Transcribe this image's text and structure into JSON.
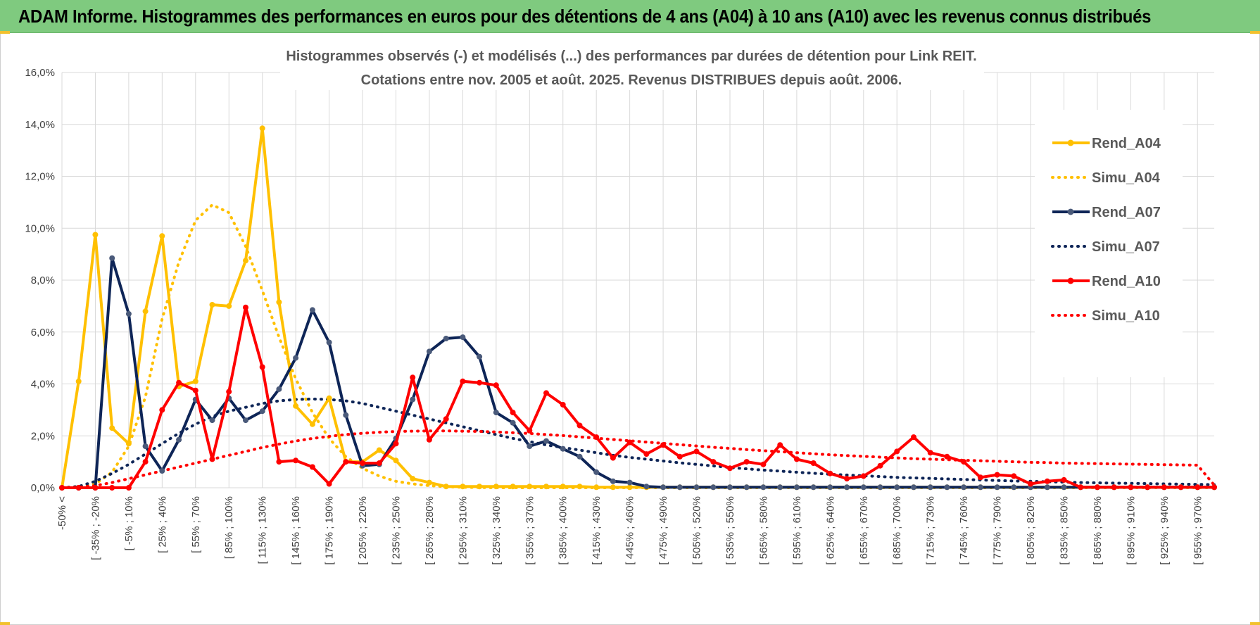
{
  "header": {
    "title": "ADAM Informe. Histogrammes des performances en euros pour des détentions de 4 ans (A04) à 10 ans (A10) avec les revenus connus distribués"
  },
  "colors": {
    "header_band": "#7fca7f",
    "a04": "#ffc000",
    "a07": "#0e2557",
    "a10": "#ff0000",
    "grid": "#d9d9d9"
  },
  "chart_data": {
    "type": "line",
    "title": [
      "Histogrammes observés (-) et modélisés (...) des performances par durées de détention pour Link REIT.",
      "Cotations entre nov. 2005 et août. 2025. Revenus DISTRIBUES depuis août. 2006."
    ],
    "ylim": [
      0,
      16
    ],
    "yticks": [
      "0,0%",
      "2,0%",
      "4,0%",
      "6,0%",
      "8,0%",
      "10,0%",
      "12,0%",
      "14,0%",
      "16,0%"
    ],
    "grid": true,
    "legend_position": "top-right",
    "x_labels": [
      "-50% <",
      "[ -35% ; -20%",
      "[ -5% ; 10%",
      "[ 25% ; 40%",
      "[ 55% ; 70%",
      "[ 85% ; 100%",
      "[ 115% ; 130%",
      "[ 145% ; 160%",
      "[ 175% ; 190%",
      "[ 205% ; 220%",
      "[ 235% ; 250%",
      "[ 265% ; 280%",
      "[ 295% ; 310%",
      "[ 325% ; 340%",
      "[ 355% ; 370%",
      "[ 385% ; 400%",
      "[ 415% ; 430%",
      "[ 445% ; 460%",
      "[ 475% ; 490%",
      "[ 505% ; 520%",
      "[ 535% ; 550%",
      "[ 565% ; 580%",
      "[ 595% ; 610%",
      "[ 625% ; 640%",
      "[ 655% ; 670%",
      "[ 685% ; 700%",
      "[ 715% ; 730%",
      "[ 745% ; 760%",
      "[ 775% ; 790%",
      "[ 805% ; 820%",
      "[ 835% ; 850%",
      "[ 865% ; 880%",
      "[ 895% ; 910%",
      "[ 925% ; 940%",
      "[ 955% ; 970%"
    ],
    "series": [
      {
        "name": "Rend_A04",
        "style": "solid",
        "color": "#ffc000",
        "markers": true,
        "values": [
          0,
          4.1,
          9.75,
          2.3,
          1.7,
          6.8,
          9.7,
          3.9,
          4.1,
          7.05,
          7.0,
          8.75,
          13.85,
          7.15,
          3.15,
          2.45,
          3.45,
          1.0,
          1.0,
          1.45,
          1.05,
          0.35,
          0.2,
          0.05,
          0.05,
          0.05,
          0.05,
          0.05,
          0.05,
          0.05,
          0.05,
          0.05,
          0.02,
          0.02,
          0.02,
          0.02,
          0.02,
          0.02,
          0.02,
          0.02,
          0.02,
          0.02,
          0.02,
          0.02,
          0.02,
          0.02,
          0.02,
          0.02,
          0.02,
          0.02,
          0.02,
          0.02,
          0.02,
          0.02,
          0.02,
          0.02,
          0.02,
          0.02,
          0.02,
          0.02,
          0.02,
          0.02,
          0.02,
          0.02,
          0.02,
          0.02,
          0.02,
          0.02,
          0.02,
          0.02
        ]
      },
      {
        "name": "Simu_A04",
        "style": "dotted",
        "color": "#ffc000",
        "markers": false,
        "values": [
          0,
          0.05,
          0.15,
          0.6,
          1.6,
          3.5,
          6.5,
          8.7,
          10.3,
          10.9,
          10.6,
          9.3,
          7.6,
          5.8,
          4.2,
          2.9,
          1.9,
          1.2,
          0.75,
          0.45,
          0.25,
          0.15,
          0.08,
          0.04,
          0.02,
          0.01,
          0,
          0,
          0,
          0,
          0,
          0,
          0,
          0,
          0,
          0,
          0,
          0,
          0,
          0,
          0,
          0,
          0,
          0,
          0,
          0,
          0,
          0,
          0,
          0,
          0,
          0,
          0,
          0,
          0,
          0,
          0,
          0,
          0,
          0,
          0,
          0,
          0,
          0,
          0,
          0,
          0,
          0,
          0,
          0
        ]
      },
      {
        "name": "Rend_A07",
        "style": "solid",
        "color": "#0e2557",
        "markers": true,
        "values": [
          0,
          0,
          0,
          8.85,
          6.7,
          1.6,
          0.65,
          1.85,
          3.4,
          2.6,
          3.45,
          2.6,
          2.95,
          3.8,
          5.0,
          6.85,
          5.6,
          2.8,
          0.85,
          0.9,
          1.9,
          3.4,
          5.25,
          5.75,
          5.8,
          5.05,
          2.9,
          2.5,
          1.6,
          1.8,
          1.5,
          1.2,
          0.6,
          0.25,
          0.2,
          0.05,
          0.02,
          0.02,
          0.02,
          0.02,
          0.02,
          0.02,
          0.02,
          0.02,
          0.02,
          0.02,
          0.02,
          0.02,
          0.02,
          0.02,
          0.02,
          0.02,
          0.02,
          0.02,
          0.02,
          0.02,
          0.02,
          0.02,
          0.02,
          0.02,
          0.02,
          0.02,
          0.02,
          0.02,
          0.02,
          0.02,
          0.02,
          0.02,
          0.02,
          0.02
        ]
      },
      {
        "name": "Simu_A07",
        "style": "dotted",
        "color": "#0e2557",
        "markers": false,
        "values": [
          0,
          0.05,
          0.25,
          0.55,
          0.9,
          1.3,
          1.7,
          2.1,
          2.45,
          2.75,
          2.95,
          3.1,
          3.25,
          3.35,
          3.4,
          3.42,
          3.4,
          3.35,
          3.25,
          3.1,
          2.95,
          2.8,
          2.65,
          2.5,
          2.35,
          2.2,
          2.05,
          1.9,
          1.78,
          1.65,
          1.55,
          1.45,
          1.35,
          1.25,
          1.17,
          1.1,
          1.03,
          0.96,
          0.9,
          0.84,
          0.78,
          0.73,
          0.68,
          0.64,
          0.6,
          0.56,
          0.52,
          0.49,
          0.46,
          0.43,
          0.4,
          0.38,
          0.36,
          0.34,
          0.32,
          0.3,
          0.28,
          0.26,
          0.25,
          0.23,
          0.22,
          0.2,
          0.19,
          0.18,
          0.17,
          0.16,
          0.15,
          0.14,
          0.13,
          0.12
        ]
      },
      {
        "name": "Rend_A10",
        "style": "solid",
        "color": "#ff0000",
        "markers": true,
        "values": [
          0,
          0,
          0,
          0,
          0,
          1.0,
          3.0,
          4.05,
          3.75,
          1.1,
          3.7,
          6.95,
          4.65,
          1.0,
          1.05,
          0.8,
          0.15,
          1.0,
          0.95,
          0.95,
          1.7,
          4.25,
          1.85,
          2.65,
          4.1,
          4.05,
          3.95,
          2.9,
          2.2,
          3.65,
          3.2,
          2.4,
          1.95,
          1.15,
          1.75,
          1.3,
          1.65,
          1.2,
          1.4,
          1.0,
          0.75,
          1.0,
          0.9,
          1.65,
          1.1,
          0.95,
          0.55,
          0.35,
          0.45,
          0.85,
          1.4,
          1.95,
          1.35,
          1.2,
          1.0,
          0.4,
          0.5,
          0.45,
          0.15,
          0.25,
          0.3,
          0.02,
          0.02,
          0.02,
          0.02,
          0.02,
          0.02,
          0.02,
          0.02,
          0.02
        ]
      },
      {
        "name": "Simu_A10",
        "style": "dotted",
        "color": "#ff0000",
        "markers": false,
        "values": [
          0,
          0.02,
          0.08,
          0.2,
          0.35,
          0.5,
          0.65,
          0.8,
          0.95,
          1.1,
          1.25,
          1.4,
          1.55,
          1.68,
          1.8,
          1.9,
          1.98,
          2.05,
          2.1,
          2.14,
          2.17,
          2.18,
          2.19,
          2.19,
          2.18,
          2.17,
          2.15,
          2.12,
          2.09,
          2.05,
          2.01,
          1.96,
          1.91,
          1.86,
          1.81,
          1.76,
          1.71,
          1.66,
          1.61,
          1.56,
          1.52,
          1.47,
          1.43,
          1.39,
          1.35,
          1.31,
          1.27,
          1.24,
          1.21,
          1.18,
          1.15,
          1.12,
          1.1,
          1.08,
          1.06,
          1.04,
          1.02,
          1.0,
          0.98,
          0.97,
          0.95,
          0.94,
          0.93,
          0.92,
          0.91,
          0.9,
          0.89,
          0.88,
          0.87,
          0.1
        ]
      }
    ]
  }
}
